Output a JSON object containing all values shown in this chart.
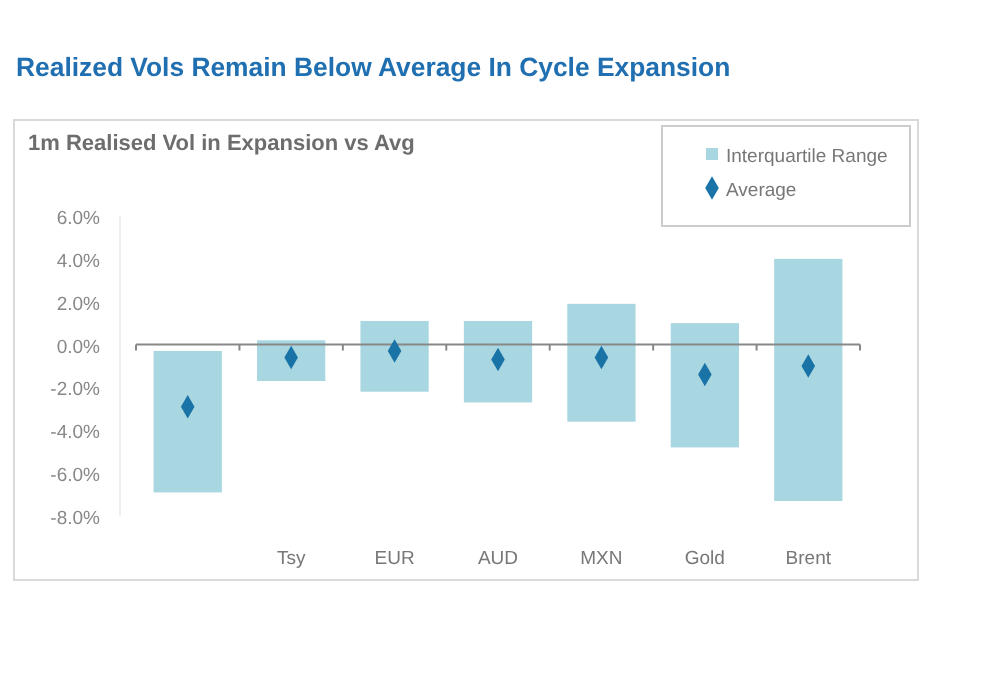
{
  "chart_data": {
    "type": "bar",
    "title": "Realized Vols Remain Below Average In Cycle Expansion",
    "subtitle": "1m Realised Vol in Expansion vs Avg",
    "categories": [
      null,
      "Tsy",
      "EUR",
      "AUD",
      "MXN",
      "Gold",
      "Brent"
    ],
    "series": [
      {
        "name": "Interquartile Range",
        "color": "#a9d7e1",
        "base": [
          -6.9,
          -1.7,
          -2.2,
          -2.7,
          -3.6,
          -4.8,
          -7.3
        ],
        "values": [
          6.6,
          1.9,
          3.3,
          3.8,
          5.5,
          5.8,
          11.3
        ]
      },
      {
        "name": "Average",
        "type": "scatter",
        "color": "#1a73a6",
        "marker": "diamond",
        "values": [
          -2.9,
          -0.6,
          -0.3,
          -0.7,
          -0.6,
          -1.4,
          -1.0
        ]
      }
    ],
    "ylim": [
      -8,
      6
    ],
    "yticks": [
      {
        "value": -8,
        "label": "-8.0%"
      },
      {
        "value": -6,
        "label": "-6.0%"
      },
      {
        "value": -4,
        "label": "-4.0%"
      },
      {
        "value": -2,
        "label": "-2.0%"
      },
      {
        "value": 0,
        "label": "0.0%"
      },
      {
        "value": 2,
        "label": "2.0%"
      },
      {
        "value": 4,
        "label": "4.0%"
      },
      {
        "value": 6,
        "label": "6.0%"
      }
    ],
    "legend": "top right"
  }
}
